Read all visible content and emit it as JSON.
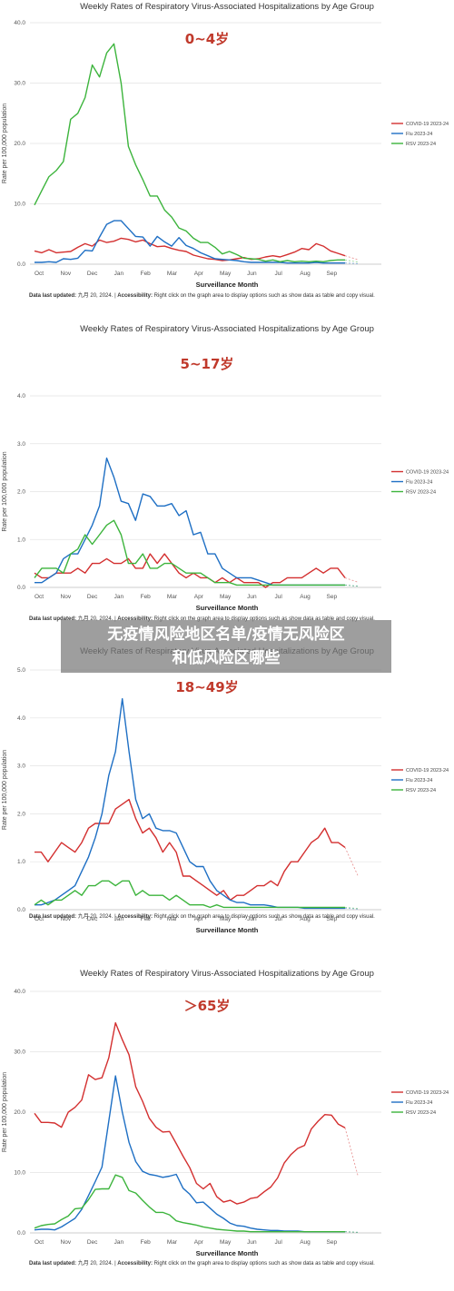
{
  "overlay": {
    "line1": "无疫情风险地区名单/疫情无风险区",
    "line2": "和低风险区哪些"
  },
  "footnote": {
    "updated_label": "Data last updated:",
    "updated_value": "九月 20, 2024.",
    "separator": "|",
    "accessibility_label": "Accessibility:",
    "accessibility_text": "Right click on the graph area to display options such as show data as table and copy visual."
  },
  "colors": {
    "covid": "#d32f2f",
    "flu": "#1e6fc4",
    "rsv": "#3cb43c",
    "grid": "#e3e3e3"
  },
  "chart_data": [
    {
      "type": "line",
      "title": "Weekly Rates of Respiratory Virus-Associated Hospitalizations by Age Group",
      "age_label": "0~4岁",
      "ylabel": "Rate per 100,000 population",
      "xlabel": "Surveillance Month",
      "ylim": [
        0,
        40
      ],
      "yticks": [
        "0.0",
        "10.0",
        "20.0",
        "30.0",
        "40.0"
      ],
      "ytick_values": [
        0,
        10,
        20,
        30,
        40
      ],
      "xticks": [
        "Oct",
        "Nov",
        "Dec",
        "Jan",
        "Feb",
        "Mar",
        "Apr",
        "May",
        "Jun",
        "Jul",
        "Aug",
        "Sep"
      ],
      "legend": [
        "COVID-19 2023-24",
        "Flu 2023-24",
        "RSV 2023-24"
      ],
      "series": [
        {
          "name": "COVID-19 2023-24",
          "values": [
            2.2,
            1.9,
            2.4,
            1.9,
            2.0,
            2.1,
            2.8,
            3.4,
            3.0,
            4.0,
            3.6,
            3.8,
            4.3,
            4.1,
            3.7,
            4.0,
            3.4,
            2.9,
            3.0,
            2.6,
            2.3,
            2.1,
            1.5,
            1.2,
            0.9,
            0.8,
            0.6,
            0.7,
            0.9,
            1.1,
            0.8,
            0.9,
            1.2,
            1.4,
            1.2,
            1.6,
            2.0,
            2.6,
            2.4,
            3.4,
            3.0,
            2.2,
            1.8,
            1.4
          ]
        },
        {
          "name": "Flu 2023-24",
          "values": [
            0.3,
            0.3,
            0.4,
            0.3,
            0.9,
            0.8,
            1.0,
            2.3,
            2.2,
            4.5,
            6.6,
            7.2,
            7.2,
            5.9,
            4.6,
            4.5,
            3.0,
            4.6,
            3.7,
            3.0,
            4.4,
            3.1,
            2.6,
            1.9,
            1.4,
            0.9,
            0.8,
            0.7,
            0.6,
            0.4,
            0.3,
            0.3,
            0.3,
            0.3,
            0.3,
            0.2,
            0.2,
            0.2,
            0.2,
            0.3,
            0.2,
            0.2,
            0.2,
            0.2
          ]
        },
        {
          "name": "RSV 2023-24",
          "values": [
            9.8,
            12.2,
            14.5,
            15.5,
            17.0,
            24.0,
            25.0,
            27.6,
            33.0,
            31.0,
            35.0,
            36.5,
            30.0,
            19.5,
            16.5,
            14.0,
            11.3,
            11.3,
            9.0,
            7.8,
            6.0,
            5.5,
            4.3,
            3.6,
            3.6,
            2.8,
            1.7,
            2.1,
            1.6,
            1.0,
            0.9,
            0.8,
            0.5,
            0.7,
            0.4,
            0.6,
            0.4,
            0.5,
            0.4,
            0.5,
            0.4,
            0.6,
            0.7,
            0.7
          ]
        }
      ]
    },
    {
      "type": "line",
      "title": "Weekly Rates of Respiratory Virus-Associated Hospitalizations by Age Group",
      "age_label": "5~17岁",
      "ylabel": "Rate per 100,000 population",
      "xlabel": "Surveillance Month",
      "ylim": [
        0,
        4
      ],
      "yticks": [
        "0.0",
        "1.0",
        "2.0",
        "3.0",
        "4.0"
      ],
      "ytick_values": [
        0,
        1,
        2,
        3,
        4
      ],
      "xticks": [
        "Oct",
        "Nov",
        "Dec",
        "Jan",
        "Feb",
        "Mar",
        "Apr",
        "May",
        "Jun",
        "Jul",
        "Aug",
        "Sep"
      ],
      "legend": [
        "COVID-19 2023-24",
        "Flu 2023-24",
        "RSV 2023-24"
      ],
      "series": [
        {
          "name": "COVID-19 2023-24",
          "values": [
            0.3,
            0.2,
            0.2,
            0.3,
            0.3,
            0.3,
            0.4,
            0.3,
            0.5,
            0.5,
            0.6,
            0.5,
            0.5,
            0.6,
            0.4,
            0.4,
            0.7,
            0.5,
            0.7,
            0.5,
            0.3,
            0.2,
            0.3,
            0.2,
            0.2,
            0.1,
            0.2,
            0.1,
            0.2,
            0.1,
            0.1,
            0.1,
            0.0,
            0.1,
            0.1,
            0.2,
            0.2,
            0.2,
            0.3,
            0.4,
            0.3,
            0.4,
            0.4,
            0.2
          ]
        },
        {
          "name": "Flu 2023-24",
          "values": [
            0.1,
            0.1,
            0.2,
            0.3,
            0.6,
            0.7,
            0.7,
            1.0,
            1.3,
            1.7,
            2.7,
            2.3,
            1.8,
            1.75,
            1.4,
            1.95,
            1.9,
            1.7,
            1.7,
            1.75,
            1.5,
            1.6,
            1.1,
            1.15,
            0.7,
            0.7,
            0.4,
            0.3,
            0.2,
            0.2,
            0.2,
            0.15,
            0.1,
            0.05,
            0.05,
            0.05,
            0.05,
            0.05,
            0.05,
            0.05,
            0.05,
            0.05,
            0.05,
            0.05
          ]
        },
        {
          "name": "RSV 2023-24",
          "values": [
            0.2,
            0.4,
            0.4,
            0.4,
            0.3,
            0.7,
            0.8,
            1.1,
            0.9,
            1.1,
            1.3,
            1.4,
            1.1,
            0.5,
            0.5,
            0.7,
            0.4,
            0.4,
            0.5,
            0.5,
            0.4,
            0.3,
            0.3,
            0.3,
            0.2,
            0.1,
            0.1,
            0.1,
            0.05,
            0.05,
            0.05,
            0.05,
            0.05,
            0.05,
            0.05,
            0.05,
            0.05,
            0.05,
            0.05,
            0.05,
            0.05,
            0.05,
            0.05,
            0.05
          ]
        }
      ]
    },
    {
      "type": "line",
      "title": "Weekly Rates of Respiratory Virus-Associated Hospitalizations by Age Group",
      "age_label": "18~49岁",
      "ylabel": "Rate per 100,000 population",
      "xlabel": "Surveillance Month",
      "ylim": [
        0,
        5
      ],
      "yticks": [
        "0.0",
        "1.0",
        "2.0",
        "3.0",
        "4.0",
        "5.0"
      ],
      "ytick_values": [
        0,
        1,
        2,
        3,
        4,
        5
      ],
      "xticks": [
        "Oct",
        "Nov",
        "Dec",
        "Jan",
        "Feb",
        "Mar",
        "Apr",
        "May",
        "Jun",
        "Jul",
        "Aug",
        "Sep"
      ],
      "legend": [
        "COVID-19 2023-24",
        "Flu 2023-24",
        "RSV 2023-24"
      ],
      "series": [
        {
          "name": "COVID-19 2023-24",
          "values": [
            1.2,
            1.2,
            1.0,
            1.2,
            1.4,
            1.3,
            1.2,
            1.4,
            1.7,
            1.8,
            1.8,
            1.8,
            2.1,
            2.2,
            2.3,
            1.9,
            1.6,
            1.7,
            1.5,
            1.2,
            1.4,
            1.2,
            0.7,
            0.7,
            0.6,
            0.5,
            0.4,
            0.3,
            0.4,
            0.2,
            0.3,
            0.3,
            0.4,
            0.5,
            0.5,
            0.6,
            0.5,
            0.8,
            1.0,
            1.0,
            1.2,
            1.4,
            1.5,
            1.7,
            1.4,
            1.4,
            1.3
          ]
        },
        {
          "name": "Flu 2023-24",
          "values": [
            0.1,
            0.1,
            0.15,
            0.2,
            0.3,
            0.4,
            0.5,
            0.8,
            1.1,
            1.5,
            2.0,
            2.8,
            3.3,
            4.4,
            3.3,
            2.3,
            1.9,
            2.0,
            1.7,
            1.65,
            1.65,
            1.6,
            1.3,
            1.0,
            0.9,
            0.9,
            0.6,
            0.4,
            0.3,
            0.2,
            0.15,
            0.15,
            0.1,
            0.1,
            0.1,
            0.08,
            0.05,
            0.05,
            0.05,
            0.05,
            0.03,
            0.03,
            0.03,
            0.03,
            0.03,
            0.03,
            0.03
          ]
        },
        {
          "name": "RSV 2023-24",
          "values": [
            0.1,
            0.2,
            0.1,
            0.2,
            0.2,
            0.3,
            0.4,
            0.3,
            0.5,
            0.5,
            0.6,
            0.6,
            0.5,
            0.6,
            0.6,
            0.3,
            0.4,
            0.3,
            0.3,
            0.3,
            0.2,
            0.3,
            0.2,
            0.1,
            0.1,
            0.1,
            0.05,
            0.1,
            0.05,
            0.05,
            0.05,
            0.05,
            0.05,
            0.05,
            0.05,
            0.05,
            0.05,
            0.05,
            0.05,
            0.05,
            0.05,
            0.05,
            0.05,
            0.05,
            0.05,
            0.05,
            0.05
          ]
        }
      ]
    },
    {
      "type": "line",
      "title": "Weekly Rates of Respiratory Virus-Associated Hospitalizations by Age Group",
      "age_label": "＞65岁",
      "ylabel": "Rate per 100,000 population",
      "xlabel": "Surveillance Month",
      "ylim": [
        0,
        40
      ],
      "yticks": [
        "0.0",
        "10.0",
        "20.0",
        "30.0",
        "40.0"
      ],
      "ytick_values": [
        0,
        10,
        20,
        30,
        40
      ],
      "xticks": [
        "Oct",
        "Nov",
        "Dec",
        "Jan",
        "Feb",
        "Mar",
        "Apr",
        "May",
        "Jun",
        "Jul",
        "Aug",
        "Sep"
      ],
      "legend": [
        "COVID-19 2023-24",
        "Flu 2023-24",
        "RSV 2023-24"
      ],
      "series": [
        {
          "name": "COVID-19 2023-24",
          "values": [
            19.8,
            18.3,
            18.3,
            18.2,
            17.5,
            20.0,
            20.8,
            22.0,
            26.2,
            25.4,
            25.7,
            29.0,
            34.8,
            32.0,
            29.5,
            24.2,
            21.8,
            19.0,
            17.5,
            16.7,
            16.8,
            14.8,
            12.7,
            10.8,
            8.2,
            7.3,
            8.2,
            6.0,
            5.1,
            5.4,
            4.8,
            5.1,
            5.7,
            5.9,
            6.8,
            7.6,
            9.1,
            11.6,
            13.0,
            14.0,
            14.5,
            17.2,
            18.5,
            19.6,
            19.5,
            18.0,
            17.4
          ]
        },
        {
          "name": "Flu 2023-24",
          "values": [
            0.5,
            0.6,
            0.6,
            0.5,
            1.0,
            1.7,
            2.4,
            3.9,
            6.2,
            8.5,
            10.9,
            18.5,
            26.0,
            20.0,
            15.0,
            11.8,
            10.2,
            9.7,
            9.5,
            9.2,
            9.4,
            9.7,
            7.4,
            6.4,
            5.0,
            5.1,
            4.1,
            3.1,
            2.4,
            1.6,
            1.2,
            1.1,
            0.8,
            0.6,
            0.5,
            0.4,
            0.4,
            0.3,
            0.3,
            0.3,
            0.2,
            0.2,
            0.2,
            0.2,
            0.2,
            0.2,
            0.2
          ]
        },
        {
          "name": "RSV 2023-24",
          "values": [
            0.8,
            1.2,
            1.4,
            1.5,
            2.2,
            2.8,
            4.0,
            4.1,
            5.5,
            7.2,
            7.3,
            7.3,
            9.6,
            9.2,
            7.0,
            6.6,
            5.4,
            4.3,
            3.4,
            3.4,
            3.0,
            2.0,
            1.7,
            1.5,
            1.3,
            1.0,
            0.8,
            0.6,
            0.5,
            0.4,
            0.3,
            0.3,
            0.2,
            0.2,
            0.2,
            0.2,
            0.2,
            0.2,
            0.2,
            0.2,
            0.2,
            0.2,
            0.2,
            0.2,
            0.2,
            0.2,
            0.2
          ]
        }
      ]
    }
  ]
}
